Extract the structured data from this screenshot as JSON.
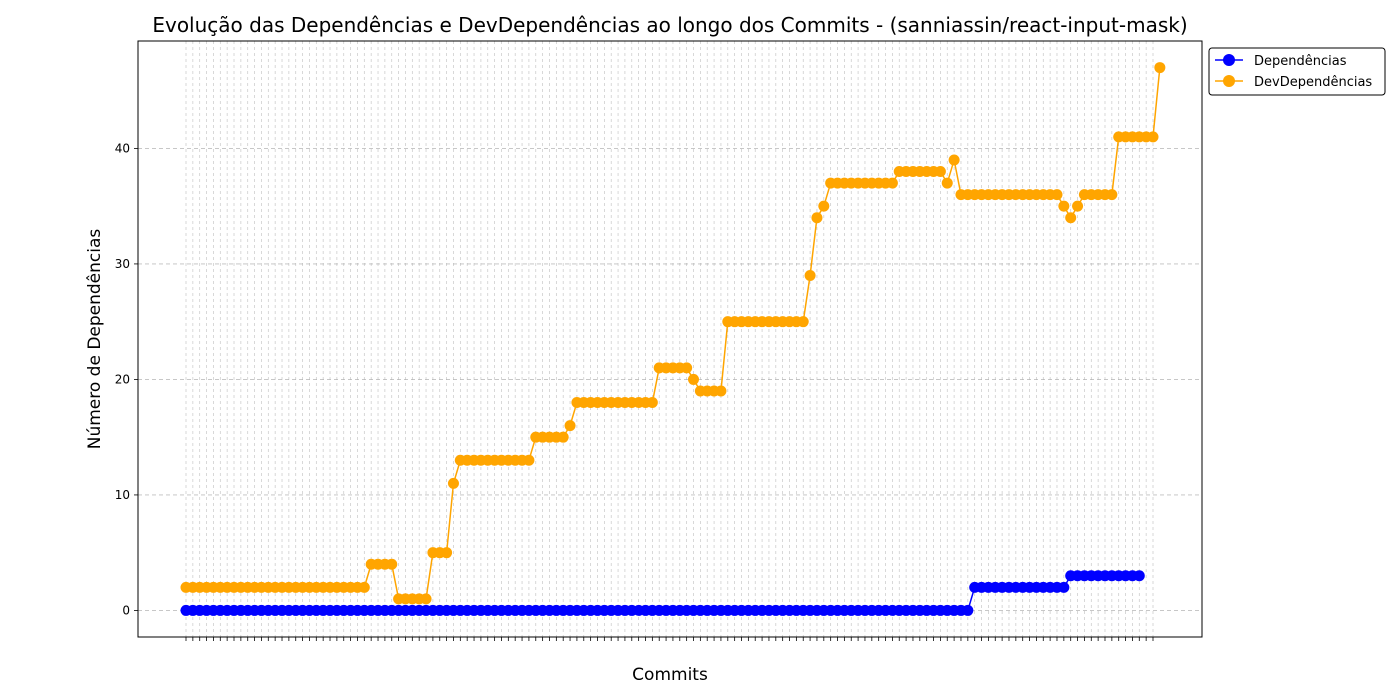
{
  "chart_data": {
    "type": "line",
    "title": "Evolução das Dependências e DevDependências ao longo dos Commits - (sanniassin/react-input-mask)",
    "xlabel": "Commits",
    "ylabel": "Número de Dependências",
    "ylim": [
      -2.3,
      49.3
    ],
    "y_ticks": [
      0,
      10,
      20,
      30,
      40
    ],
    "grid": true,
    "legend_position": "top-right, outside plot",
    "x_count": 142,
    "series": [
      {
        "name": "Dependências",
        "color": "#0000ff",
        "values": [
          0,
          0,
          0,
          0,
          0,
          0,
          0,
          0,
          0,
          0,
          0,
          0,
          0,
          0,
          0,
          0,
          0,
          0,
          0,
          0,
          0,
          0,
          0,
          0,
          0,
          0,
          0,
          0,
          0,
          0,
          0,
          0,
          0,
          0,
          0,
          0,
          0,
          0,
          0,
          0,
          0,
          0,
          0,
          0,
          0,
          0,
          0,
          0,
          0,
          0,
          0,
          0,
          0,
          0,
          0,
          0,
          0,
          0,
          0,
          0,
          0,
          0,
          0,
          0,
          0,
          0,
          0,
          0,
          0,
          0,
          0,
          0,
          0,
          0,
          0,
          0,
          0,
          0,
          0,
          0,
          0,
          0,
          0,
          0,
          0,
          0,
          0,
          0,
          0,
          0,
          0,
          0,
          0,
          0,
          0,
          0,
          0,
          0,
          0,
          0,
          0,
          0,
          0,
          0,
          0,
          0,
          0,
          0,
          0,
          0,
          0,
          0,
          0,
          0,
          0,
          2,
          2,
          2,
          2,
          2,
          2,
          2,
          2,
          2,
          2,
          2,
          2,
          2,
          2,
          3,
          3,
          3,
          3,
          3,
          3,
          3,
          3,
          3,
          3,
          3
        ]
      },
      {
        "name": "DevDependências",
        "color": "#ffa500",
        "values": [
          2,
          2,
          2,
          2,
          2,
          2,
          2,
          2,
          2,
          2,
          2,
          2,
          2,
          2,
          2,
          2,
          2,
          2,
          2,
          2,
          2,
          2,
          2,
          2,
          2,
          2,
          2,
          4,
          4,
          4,
          4,
          1,
          1,
          1,
          1,
          1,
          5,
          5,
          5,
          11,
          13,
          13,
          13,
          13,
          13,
          13,
          13,
          13,
          13,
          13,
          13,
          15,
          15,
          15,
          15,
          15,
          16,
          18,
          18,
          18,
          18,
          18,
          18,
          18,
          18,
          18,
          18,
          18,
          18,
          21,
          21,
          21,
          21,
          21,
          20,
          19,
          19,
          19,
          19,
          25,
          25,
          25,
          25,
          25,
          25,
          25,
          25,
          25,
          25,
          25,
          25,
          29,
          34,
          35,
          37,
          37,
          37,
          37,
          37,
          37,
          37,
          37,
          37,
          37,
          38,
          38,
          38,
          38,
          38,
          38,
          38,
          37,
          39,
          36,
          36,
          36,
          36,
          36,
          36,
          36,
          36,
          36,
          36,
          36,
          36,
          36,
          36,
          36,
          35,
          34,
          35,
          36,
          36,
          36,
          36,
          36,
          41,
          41,
          41,
          41,
          41,
          41,
          47
        ]
      }
    ]
  }
}
